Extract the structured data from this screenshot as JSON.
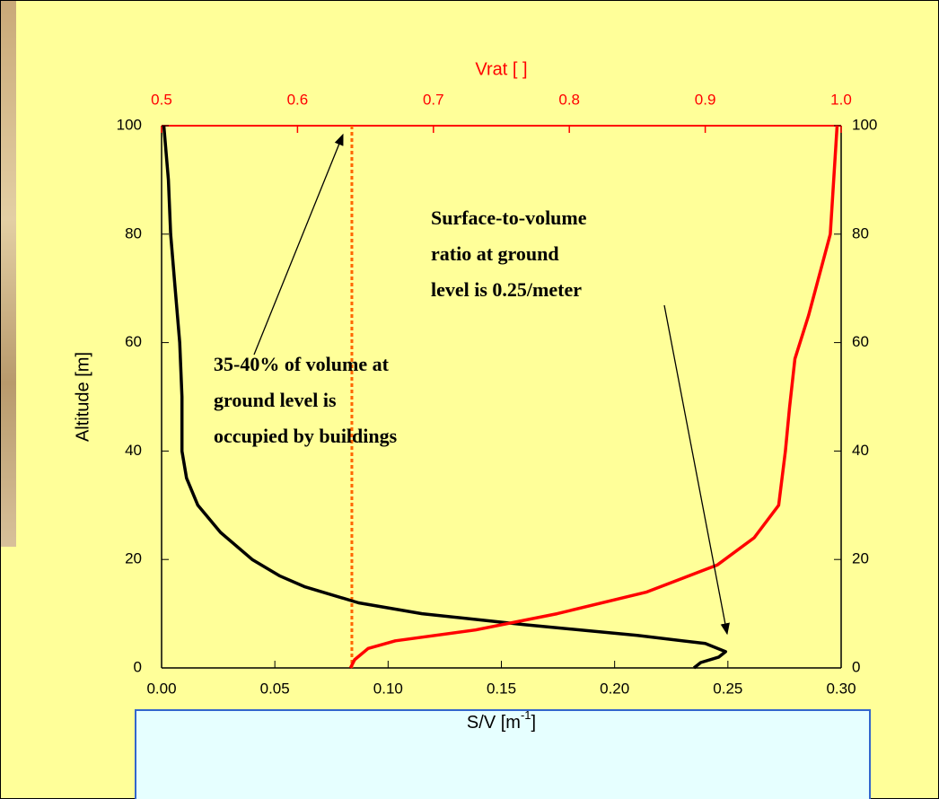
{
  "chart_data": {
    "type": "line",
    "xlabel": [
      "S/V [m",
      "-1",
      "]"
    ],
    "x2label": "Vrat [ ]",
    "ylabel": "Altitude [m]",
    "xlim": [
      0,
      0.3
    ],
    "xticks": [
      {
        "value": 0,
        "label": "0.00"
      },
      0.05,
      {
        "value": 0.1,
        "label": "0.10"
      },
      0.15,
      {
        "value": 0.2,
        "label": "0.20"
      },
      0.25,
      {
        "value": 0.3,
        "label": "0.30"
      }
    ],
    "x2lim": [
      0.5,
      1.0
    ],
    "x2ticks": [
      0.5,
      0.6,
      0.7,
      0.8,
      0.9,
      {
        "value": 1.0,
        "label": "1.0"
      }
    ],
    "x2color": "#ff0000",
    "ylim": [
      0,
      100
    ],
    "yticks": [
      0,
      20,
      40,
      60,
      80,
      100
    ],
    "y2lim": [
      0,
      100
    ],
    "y2ticks": [
      0,
      20,
      40,
      60,
      80,
      100
    ],
    "series": [
      {
        "color": "#000000",
        "x": [
          0.001,
          0.003,
          0.004,
          0.006,
          0.008,
          0.009,
          0.009,
          0.011,
          0.016,
          0.026,
          0.04,
          0.052,
          0.063,
          0.087,
          0.115,
          0.16,
          0.21,
          0.24,
          0.249,
          0.246,
          0.238,
          0.235
        ],
        "y": [
          100,
          90,
          80,
          70,
          60,
          50,
          40,
          35,
          30,
          25,
          20,
          17,
          15,
          12,
          10,
          8,
          6,
          4.5,
          3,
          2,
          1,
          0
        ]
      },
      {
        "color": "#ff0000",
        "axis": "x2",
        "x": [
          0.997,
          0.992,
          0.976,
          0.966,
          0.962,
          0.959,
          0.954,
          0.936,
          0.909,
          0.857,
          0.791,
          0.731,
          0.672,
          0.652,
          0.642,
          0.639
        ],
        "y": [
          100,
          80,
          65,
          57,
          48,
          40,
          30,
          24,
          19,
          14,
          10,
          7,
          5,
          3.6,
          1.5,
          0
        ]
      }
    ],
    "reference_line": {
      "x2": 0.64,
      "color": "#ff6600"
    },
    "annotations": [
      {
        "lines": [
          "35-40% of volume at",
          "ground level is",
          "occupied by buildings"
        ]
      },
      {
        "lines": [
          "Surface-to-volume",
          "ratio at ground",
          "level is 0.25/meter"
        ]
      }
    ]
  }
}
